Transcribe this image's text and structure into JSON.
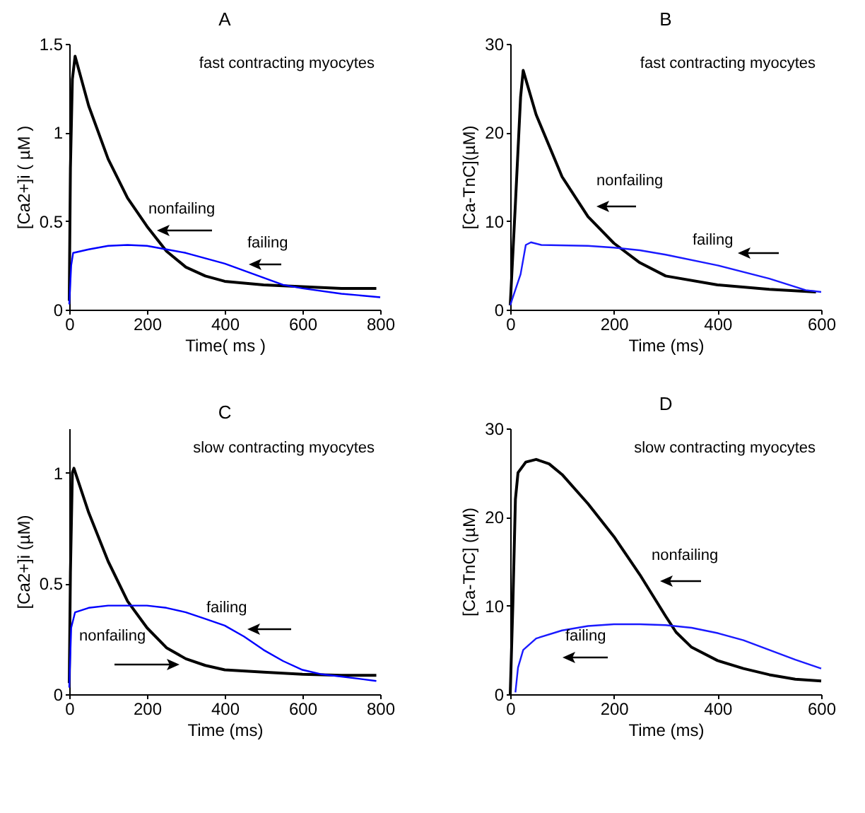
{
  "chart_data": [
    {
      "type": "line",
      "title": "A",
      "xlabel": "Time( ms )",
      "ylabel": "[Ca2+]i ( µM )",
      "annotations": [
        "fast contracting myocytes"
      ],
      "xlim": [
        0,
        800
      ],
      "xticks": [
        0,
        200,
        400,
        600,
        800
      ],
      "ylim": [
        0,
        1.5
      ],
      "yticks": [
        0,
        0.5,
        1,
        1.5
      ],
      "grid": false,
      "legend": false,
      "series": [
        {
          "name": "nonfailing",
          "color": "#000000",
          "x": [
            0,
            3,
            8,
            15,
            50,
            100,
            150,
            200,
            250,
            300,
            350,
            400,
            500,
            600,
            700,
            790
          ],
          "values": [
            0.05,
            0.8,
            1.3,
            1.43,
            1.15,
            0.85,
            0.63,
            0.47,
            0.33,
            0.24,
            0.19,
            0.16,
            0.14,
            0.13,
            0.12,
            0.12
          ]
        },
        {
          "name": "failing",
          "color": "#0000ff",
          "x": [
            0,
            5,
            10,
            50,
            100,
            150,
            200,
            250,
            300,
            350,
            400,
            450,
            500,
            550,
            600,
            700,
            800
          ],
          "values": [
            0.03,
            0.25,
            0.32,
            0.34,
            0.36,
            0.365,
            0.36,
            0.34,
            0.32,
            0.29,
            0.26,
            0.22,
            0.18,
            0.14,
            0.12,
            0.09,
            0.07
          ]
        }
      ]
    },
    {
      "type": "line",
      "title": "B",
      "xlabel": "Time (ms)",
      "ylabel": "[Ca-TnC](µM)",
      "annotations": [
        "fast contracting myocytes"
      ],
      "xlim": [
        0,
        600
      ],
      "xticks": [
        0,
        200,
        400,
        600
      ],
      "ylim": [
        0,
        30
      ],
      "yticks": [
        0,
        10,
        20,
        30
      ],
      "grid": false,
      "legend": false,
      "series": [
        {
          "name": "nonfailing",
          "color": "#000000",
          "x": [
            0,
            10,
            20,
            25,
            50,
            100,
            150,
            200,
            250,
            300,
            400,
            500,
            590
          ],
          "values": [
            0.5,
            12,
            24,
            27,
            22,
            15,
            10.5,
            7.5,
            5.3,
            3.8,
            2.8,
            2.3,
            2.0
          ]
        },
        {
          "name": "failing",
          "color": "#1a1aff",
          "x": [
            0,
            20,
            30,
            40,
            60,
            150,
            200,
            250,
            300,
            400,
            500,
            570,
            600
          ],
          "values": [
            0.5,
            4,
            7.3,
            7.6,
            7.3,
            7.2,
            7.0,
            6.7,
            6.2,
            5.0,
            3.5,
            2.2,
            2.0
          ]
        }
      ]
    },
    {
      "type": "line",
      "title": "C",
      "xlabel": "Time (ms)",
      "ylabel": "[Ca2+]i (µM)",
      "annotations": [
        "slow  contracting myocytes"
      ],
      "xlim": [
        0,
        800
      ],
      "xticks": [
        0,
        200,
        400,
        600,
        800
      ],
      "ylim": [
        0,
        1.2
      ],
      "yticks": [
        0,
        0.5,
        1
      ],
      "grid": false,
      "legend": false,
      "series": [
        {
          "name": "nonfailing",
          "color": "#000000",
          "x": [
            0,
            3,
            8,
            12,
            50,
            100,
            150,
            200,
            250,
            300,
            350,
            400,
            500,
            600,
            700,
            790
          ],
          "values": [
            0.05,
            0.55,
            1.0,
            1.02,
            0.82,
            0.6,
            0.42,
            0.3,
            0.21,
            0.16,
            0.13,
            0.11,
            0.1,
            0.09,
            0.085,
            0.085
          ]
        },
        {
          "name": "failing",
          "color": "#0000ff",
          "x": [
            0,
            5,
            15,
            50,
            100,
            150,
            200,
            250,
            300,
            350,
            400,
            450,
            500,
            550,
            600,
            650,
            700,
            790
          ],
          "values": [
            0.03,
            0.3,
            0.37,
            0.39,
            0.4,
            0.4,
            0.4,
            0.39,
            0.37,
            0.34,
            0.31,
            0.26,
            0.2,
            0.15,
            0.11,
            0.09,
            0.08,
            0.06
          ]
        }
      ]
    },
    {
      "type": "line",
      "title": "D",
      "xlabel": "Time (ms)",
      "ylabel": "[Ca-TnC] (µM)",
      "annotations": [
        "slow  contracting myocytes"
      ],
      "xlim": [
        0,
        600
      ],
      "xticks": [
        0,
        200,
        400,
        600
      ],
      "ylim": [
        0,
        30
      ],
      "yticks": [
        0,
        10,
        20,
        30
      ],
      "grid": false,
      "legend": false,
      "series": [
        {
          "name": "nonfailing",
          "color": "#000000",
          "x": [
            0,
            5,
            10,
            15,
            30,
            50,
            75,
            100,
            150,
            200,
            250,
            300,
            320,
            350,
            400,
            450,
            500,
            550,
            600
          ],
          "values": [
            0,
            10,
            22,
            25,
            26.2,
            26.5,
            26,
            24.8,
            21.5,
            17.8,
            13.5,
            8.8,
            7,
            5.3,
            3.8,
            2.9,
            2.2,
            1.7,
            1.5
          ]
        },
        {
          "name": "failing",
          "color": "#1a1aff",
          "x": [
            10,
            15,
            25,
            50,
            100,
            150,
            200,
            250,
            300,
            350,
            400,
            450,
            500,
            550,
            600
          ],
          "values": [
            0.2,
            3,
            5,
            6.3,
            7.2,
            7.7,
            7.9,
            7.9,
            7.8,
            7.5,
            6.9,
            6.1,
            5,
            3.9,
            2.9
          ]
        }
      ]
    }
  ]
}
